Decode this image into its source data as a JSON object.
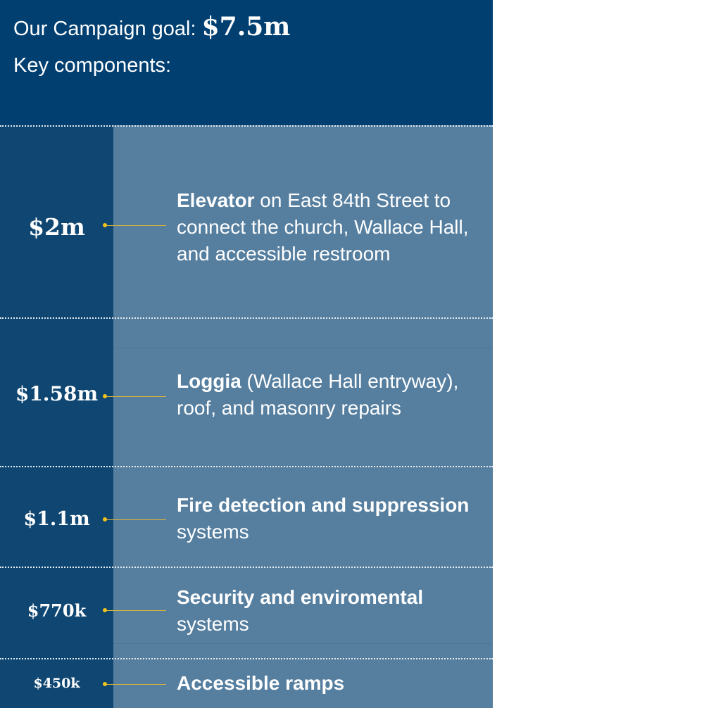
{
  "header": {
    "goal_prefix": "Our Campaign goal:",
    "goal_value": "$7.5m",
    "key_components": "Key components:"
  },
  "chart_data": {
    "type": "table",
    "title": "Our Campaign goal: $7.5m",
    "subtitle": "Key components:",
    "columns": [
      "amount",
      "component"
    ],
    "rows": [
      {
        "amount_label": "$2m",
        "value": 2000000,
        "lead": "Elevator",
        "rest": " on East 84th Street to connect the church, Wallace Hall, and accessible restroom"
      },
      {
        "amount_label": "$1.58m",
        "value": 1580000,
        "lead": "Loggia",
        "rest": " (Wallace Hall entryway), roof, and masonry repairs"
      },
      {
        "amount_label": "$1.1m",
        "value": 1100000,
        "lead": "Fire detection and suppression",
        "rest": " systems"
      },
      {
        "amount_label": "$770k",
        "value": 770000,
        "lead": "Security and enviromental",
        "rest": " systems"
      },
      {
        "amount_label": "$450k",
        "value": 450000,
        "lead": "Accessible ramps",
        "rest": ""
      }
    ]
  },
  "colors": {
    "header_bg": "#003f70",
    "amount_col_bg": "#0f4672",
    "description_col_bg": "#557e9f",
    "connector": "#f0c21c",
    "text": "#ffffff"
  }
}
